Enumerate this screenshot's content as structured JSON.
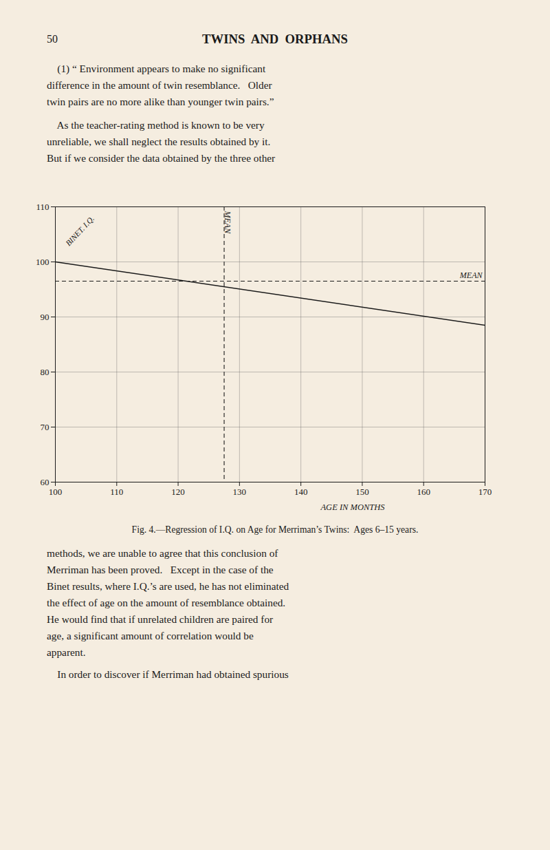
{
  "page": {
    "header_number": "50",
    "header_title": "TWINS  AND  ORPHANS",
    "paragraphs_before": [
      [
        "    (1) “ Environment appears to make no significant",
        "difference in the amount of twin resemblance.   Older",
        "twin pairs are no more alike than younger twin pairs.”"
      ],
      [
        "    As the teacher-rating method is known to be very",
        "unreliable, we shall neglect the results obtained by it.",
        "But if we consider the data obtained by the three other"
      ]
    ],
    "paragraphs_after": [
      [
        "methods, we are unable to agree that this conclusion of",
        "Merriman has been proved.   Except in the case of the",
        "Binet results, where I.Q.’s are used, he has not eliminated",
        "the effect of age on the amount of resemblance obtained.",
        "He would find that if unrelated children are paired for",
        "age, a significant amount of correlation would be",
        "apparent."
      ],
      [
        "    In order to discover if Merriman had obtained spurious"
      ]
    ]
  },
  "chart_data": {
    "type": "line",
    "title": "Fig. 4.—Regression of I.Q. on Age for Merriman’s Twins:  Ages 6–15 years.",
    "x": [
      100,
      170
    ],
    "values": [
      100.0,
      88.5
    ],
    "color": "#1a1a1a",
    "xlabel": "AGE IN MONTHS",
    "ylabel": "BINET. I.Q.",
    "xlim": [
      100,
      170
    ],
    "ylim": [
      60,
      110
    ],
    "xticks": [
      100,
      110,
      120,
      130,
      140,
      150,
      160,
      170
    ],
    "yticks": [
      60,
      70,
      80,
      90,
      100,
      110
    ],
    "grid": true,
    "annotations": [
      {
        "type": "hline",
        "y": 96.5,
        "text": "MEAN",
        "line_style": "dashed"
      },
      {
        "type": "vline",
        "x": 127.5,
        "text": "MEAN",
        "line_style": "dashed"
      }
    ]
  }
}
